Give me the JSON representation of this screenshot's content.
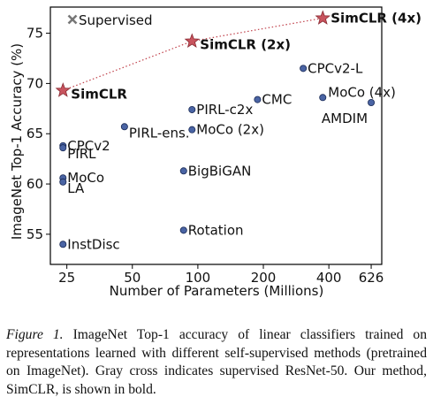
{
  "chart_data": {
    "type": "scatter",
    "xlabel": "Number of Parameters (Millions)",
    "ylabel": "ImageNet Top-1 Accuracy (%)",
    "x_scale": "log",
    "xlim": [
      21,
      700
    ],
    "ylim": [
      52,
      77.6
    ],
    "x_ticks": [
      25,
      50,
      100,
      200,
      400,
      626
    ],
    "x_tick_labels": [
      "25",
      "50",
      "100",
      "200",
      "400",
      "626"
    ],
    "y_ticks": [
      55,
      60,
      65,
      70,
      75
    ],
    "y_tick_labels": [
      "55",
      "60",
      "65",
      "70",
      "75"
    ],
    "legend": {
      "label": "Supervised",
      "marker": "cross",
      "color": "#777777",
      "position": "top-left"
    },
    "simclr_line": {
      "color": "#c0404a",
      "style": "dotted"
    },
    "points": [
      {
        "name": "SimCLR",
        "x": 24,
        "y": 69.3,
        "marker": "star",
        "bold": true,
        "label_pos": "right-below"
      },
      {
        "name": "SimCLR (2x)",
        "x": 94,
        "y": 74.2,
        "marker": "star",
        "bold": true,
        "label_pos": "right-below"
      },
      {
        "name": "SimCLR (4x)",
        "x": 375,
        "y": 76.5,
        "marker": "star",
        "bold": true,
        "label_pos": "right"
      },
      {
        "name": "CPCv2-L",
        "x": 305,
        "y": 71.5,
        "marker": "circle",
        "label_pos": "right"
      },
      {
        "name": "MoCo (4x)",
        "x": 375,
        "y": 68.6,
        "marker": "circle",
        "label_pos": "right-above"
      },
      {
        "name": "AMDIM",
        "x": 626,
        "y": 68.1,
        "marker": "circle",
        "label_pos": "left-below"
      },
      {
        "name": "CMC",
        "x": 188,
        "y": 68.4,
        "marker": "circle",
        "label_pos": "right"
      },
      {
        "name": "PIRL-c2x",
        "x": 94,
        "y": 67.4,
        "marker": "circle",
        "label_pos": "right"
      },
      {
        "name": "MoCo (2x)",
        "x": 94,
        "y": 65.4,
        "marker": "circle",
        "label_pos": "right"
      },
      {
        "name": "PIRL-ens.",
        "x": 46,
        "y": 65.7,
        "marker": "circle",
        "label_pos": "right-below"
      },
      {
        "name": "CPCv2",
        "x": 24,
        "y": 63.8,
        "marker": "circle",
        "label_pos": "right"
      },
      {
        "name": "PIRL",
        "x": 24,
        "y": 63.6,
        "marker": "circle",
        "label_pos": "right-below"
      },
      {
        "name": "BigBiGAN",
        "x": 86,
        "y": 61.3,
        "marker": "circle",
        "label_pos": "right"
      },
      {
        "name": "MoCo",
        "x": 24,
        "y": 60.6,
        "marker": "circle",
        "label_pos": "right"
      },
      {
        "name": "LA",
        "x": 24,
        "y": 60.2,
        "marker": "circle",
        "label_pos": "right-below"
      },
      {
        "name": "Rotation",
        "x": 86,
        "y": 55.4,
        "marker": "circle",
        "label_pos": "right"
      },
      {
        "name": "InstDisc",
        "x": 24,
        "y": 54.0,
        "marker": "circle",
        "label_pos": "right"
      }
    ],
    "colors": {
      "circle_fill": "#4a64a4",
      "circle_stroke": "#1a2a55",
      "star_fill": "#c8545e",
      "star_stroke": "#8a2a32"
    }
  },
  "caption": {
    "figure_label": "Figure 1.",
    "text": "ImageNet Top-1 accuracy of linear classifiers trained on representations learned with different self-supervised methods (pretrained on ImageNet). Gray cross indicates supervised ResNet-50. Our method, SimCLR, is shown in bold."
  }
}
